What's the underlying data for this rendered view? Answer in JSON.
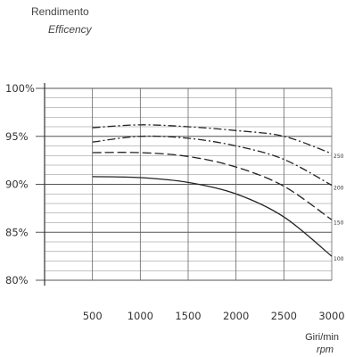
{
  "chart_data": {
    "type": "line",
    "ylabel_primary": "Rendimento",
    "ylabel_secondary": "Efficency",
    "xlabel_primary": "Giri/min",
    "xlabel_secondary": "rpm",
    "xlim": [
      0,
      3000
    ],
    "ylim": [
      80,
      100
    ],
    "x_ticks": [
      500,
      1000,
      1500,
      2000,
      2500,
      3000
    ],
    "x_tick_labels": [
      "500",
      "1000",
      "1500",
      "2000",
      "2500",
      "3000"
    ],
    "y_ticks": [
      80,
      85,
      90,
      95,
      100
    ],
    "y_tick_labels": [
      "80%",
      "85%",
      "90%",
      "95%",
      "100%"
    ],
    "grid": true,
    "series": [
      {
        "name": "250",
        "style": "dash-dot",
        "x": [
          500,
          1000,
          1500,
          2000,
          2500,
          3000
        ],
        "y": [
          95.9,
          96.2,
          96.0,
          95.6,
          95.0,
          93.2
        ]
      },
      {
        "name": "200",
        "style": "dash-dot",
        "x": [
          500,
          1000,
          1500,
          2000,
          2500,
          3000
        ],
        "y": [
          94.4,
          95.0,
          94.8,
          94.0,
          92.6,
          89.9
        ]
      },
      {
        "name": "150",
        "style": "dashed",
        "x": [
          500,
          1000,
          1500,
          2000,
          2500,
          3000
        ],
        "y": [
          93.3,
          93.3,
          92.9,
          91.8,
          89.8,
          86.3
        ]
      },
      {
        "name": "100",
        "style": "solid",
        "x": [
          500,
          1000,
          1500,
          2000,
          2500,
          3000
        ],
        "y": [
          90.8,
          90.7,
          90.2,
          89.0,
          86.6,
          82.5
        ]
      }
    ]
  }
}
